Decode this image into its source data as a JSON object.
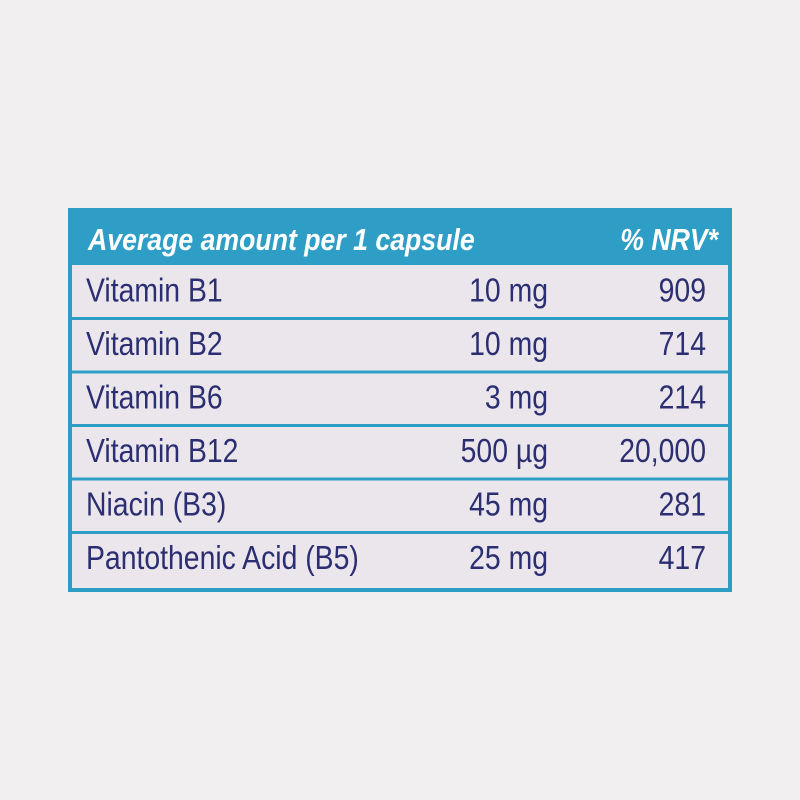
{
  "table": {
    "header": [
      "Average amount per 1 capsule",
      "% NRV*"
    ],
    "rows": [
      [
        "Vitamin B1",
        "10 mg",
        "909"
      ],
      [
        "Vitamin B2",
        "10 mg",
        "714"
      ],
      [
        "Vitamin B6",
        "3 mg",
        "214"
      ],
      [
        "Vitamin B12",
        "500 µg",
        "20,000"
      ],
      [
        "Niacin (B3)",
        "45 mg",
        "281"
      ],
      [
        "Pantothenic Acid (B5)",
        "25 mg",
        "417"
      ]
    ]
  }
}
